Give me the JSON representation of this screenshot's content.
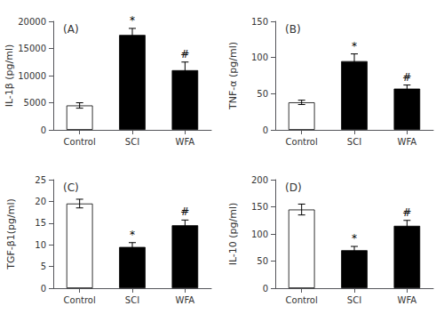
{
  "chart_data": [
    {
      "type": "bar",
      "title": "(A)",
      "ylabel": "IL-1β (pg/ml)",
      "categories": [
        "Control",
        "SCI",
        "WFA"
      ],
      "values": [
        4500,
        17500,
        11000
      ],
      "errors": [
        500,
        1200,
        1500
      ],
      "colors": [
        "white",
        "black",
        "black"
      ],
      "ylim": [
        0,
        20000
      ],
      "yticks": [
        0,
        5000,
        10000,
        15000,
        20000
      ],
      "grid": false,
      "annotations": [
        {
          "x": "SCI",
          "text": "*"
        },
        {
          "x": "WFA",
          "text": "#"
        }
      ]
    },
    {
      "type": "bar",
      "title": "(B)",
      "ylabel": "TNF-α (pg/ml)",
      "categories": [
        "Control",
        "SCI",
        "WFA"
      ],
      "values": [
        38,
        95,
        57
      ],
      "errors": [
        3,
        10,
        5
      ],
      "colors": [
        "white",
        "black",
        "black"
      ],
      "ylim": [
        0,
        150
      ],
      "yticks": [
        0,
        50,
        100,
        150
      ],
      "grid": false,
      "annotations": [
        {
          "x": "SCI",
          "text": "*"
        },
        {
          "x": "WFA",
          "text": "#"
        }
      ]
    },
    {
      "type": "bar",
      "title": "(C)",
      "ylabel": "TGF-β1(pg/ml)",
      "categories": [
        "Control",
        "SCI",
        "WFA"
      ],
      "values": [
        19.5,
        9.5,
        14.5
      ],
      "errors": [
        1.0,
        1.0,
        1.2
      ],
      "colors": [
        "white",
        "black",
        "black"
      ],
      "ylim": [
        0,
        25
      ],
      "yticks": [
        0,
        5,
        10,
        15,
        20,
        25
      ],
      "grid": false,
      "annotations": [
        {
          "x": "SCI",
          "text": "*"
        },
        {
          "x": "WFA",
          "text": "#"
        }
      ]
    },
    {
      "type": "bar",
      "title": "(D)",
      "ylabel": "IL-10 (pg/ml)",
      "categories": [
        "Control",
        "SCI",
        "WFA"
      ],
      "values": [
        145,
        70,
        115
      ],
      "errors": [
        10,
        7,
        10
      ],
      "colors": [
        "white",
        "black",
        "black"
      ],
      "ylim": [
        0,
        200
      ],
      "yticks": [
        0,
        50,
        100,
        150,
        200
      ],
      "grid": false,
      "annotations": [
        {
          "x": "SCI",
          "text": "*"
        },
        {
          "x": "WFA",
          "text": "#"
        }
      ]
    }
  ]
}
